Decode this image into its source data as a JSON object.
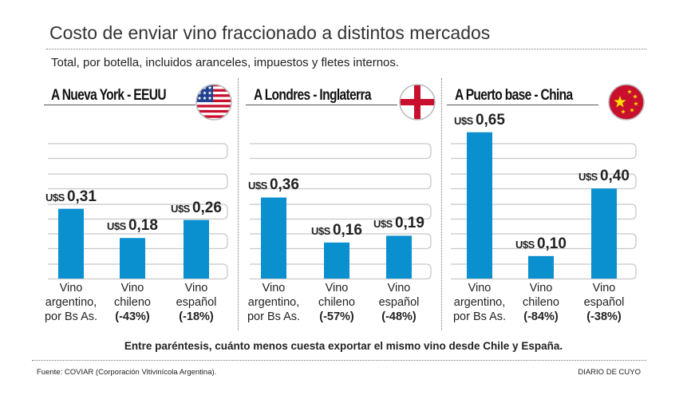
{
  "title": "Costo de enviar vino fraccionado a distintos mercados",
  "subtitle": "Total, por botella, incluidos aranceles, impuestos y fletes internos.",
  "note": "Entre paréntesis, cuánto menos cuesta exportar el mismo vino desde Chile y España.",
  "source": "Fuente: COVIAR (Corporación Vitivinícola Argentina).",
  "brand": "DIARIO DE CUYO",
  "colors": {
    "bar": "#0a8fcf",
    "grid": "#c8c8c8"
  },
  "currency": "U$S",
  "chart_data": [
    {
      "type": "bar",
      "title": "A Nueva York - EEUU",
      "flag": "usa-flag-icon",
      "categories": [
        [
          "Vino",
          "argentino,",
          "por Bs As."
        ],
        [
          "Vino",
          "chileno",
          "(-43%)"
        ],
        [
          "Vino",
          "español",
          "(-18%)"
        ]
      ],
      "values": [
        0.31,
        0.18,
        0.26
      ],
      "value_labels": [
        "0,31",
        "0,18",
        "0,26"
      ],
      "grid": true
    },
    {
      "type": "bar",
      "title": "A Londres - Inglaterra",
      "flag": "england-flag-icon",
      "categories": [
        [
          "Vino",
          "argentino,",
          "por Bs As."
        ],
        [
          "Vino",
          "chileno",
          "(-57%)"
        ],
        [
          "Vino",
          "español",
          "(-48%)"
        ]
      ],
      "values": [
        0.36,
        0.16,
        0.19
      ],
      "value_labels": [
        "0,36",
        "0,16",
        "0,19"
      ],
      "grid": true
    },
    {
      "type": "bar",
      "title": "A Puerto base - China",
      "flag": "china-flag-icon",
      "categories": [
        [
          "Vino",
          "argentino,",
          "por Bs As."
        ],
        [
          "Vino",
          "chileno",
          "(-84%)"
        ],
        [
          "Vino",
          "español",
          "(-38%)"
        ]
      ],
      "values": [
        0.65,
        0.1,
        0.4
      ],
      "value_labels": [
        "0,65",
        "0,10",
        "0,40"
      ],
      "grid": true
    }
  ]
}
